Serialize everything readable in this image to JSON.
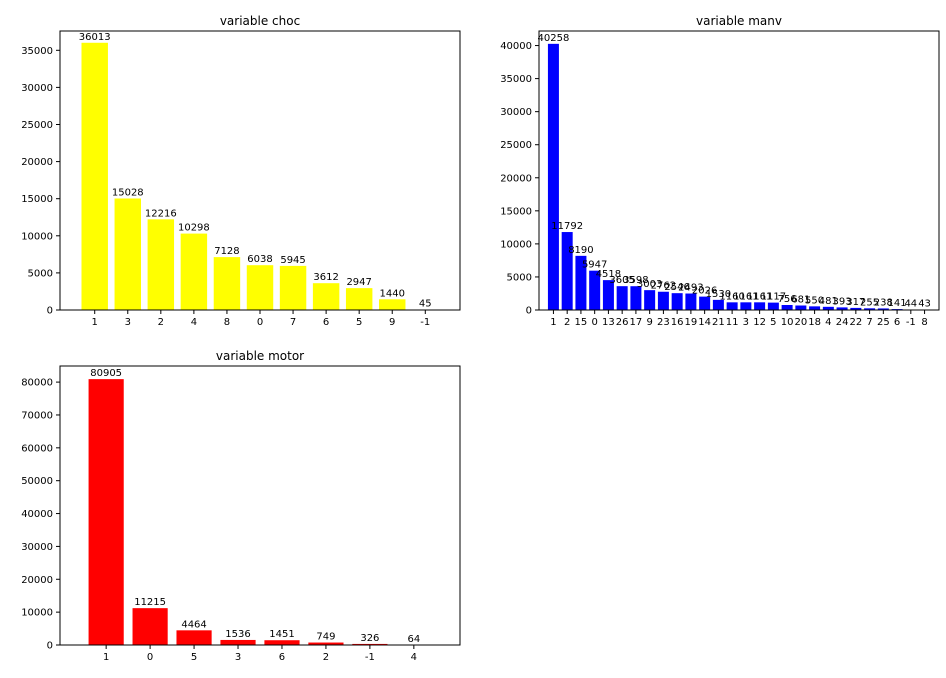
{
  "chart_data": [
    {
      "type": "bar",
      "title": "variable choc",
      "color": "#ffff00",
      "xlabel": "",
      "ylabel": "",
      "ylim": [
        0,
        37600
      ],
      "yticks": [
        0,
        5000,
        10000,
        15000,
        20000,
        25000,
        30000,
        35000
      ],
      "categories": [
        "1",
        "3",
        "2",
        "4",
        "8",
        "0",
        "7",
        "6",
        "5",
        "9",
        "-1"
      ],
      "values": [
        36013,
        15028,
        12216,
        10298,
        7128,
        6038,
        5945,
        3612,
        2947,
        1440,
        45
      ],
      "data_labels": [
        "36013",
        "15028",
        "12216",
        "10298",
        "7128",
        "6038",
        "5945",
        "3612",
        "2947",
        "1440",
        "45"
      ]
    },
    {
      "type": "bar",
      "title": "variable manv",
      "color": "#0000ff",
      "xlabel": "",
      "ylabel": "",
      "ylim": [
        0,
        42200
      ],
      "yticks": [
        0,
        5000,
        10000,
        15000,
        20000,
        25000,
        30000,
        35000,
        40000
      ],
      "categories": [
        "1",
        "2",
        "15",
        "0",
        "13",
        "26",
        "17",
        "9",
        "23",
        "16",
        "19",
        "14",
        "21",
        "11",
        "3",
        "12",
        "5",
        "10",
        "20",
        "18",
        "4",
        "24",
        "22",
        "7",
        "25",
        "6",
        "-1",
        "8"
      ],
      "values": [
        40258,
        11792,
        8190,
        5947,
        4518,
        3605,
        3598,
        3003,
        2762,
        2546,
        2493,
        2026,
        1530,
        1160,
        1161,
        1161,
        1117,
        756,
        681,
        550,
        481,
        393,
        317,
        255,
        238,
        141,
        44,
        43
      ],
      "data_labels": [
        "40258",
        "11792",
        "8190",
        "5947",
        "4518",
        "3605",
        "3598",
        "3003",
        "2762",
        "2546",
        "2493",
        "2026",
        "1530",
        "1160",
        "1161",
        "1161",
        "1117",
        "756",
        "681",
        "550",
        "481",
        "393",
        "317",
        "255",
        "238",
        "141",
        "44",
        "43"
      ]
    },
    {
      "type": "bar",
      "title": "variable motor",
      "color": "#ff0000",
      "xlabel": "",
      "ylabel": "",
      "ylim": [
        0,
        84900
      ],
      "yticks": [
        0,
        10000,
        20000,
        30000,
        40000,
        50000,
        60000,
        70000,
        80000
      ],
      "categories": [
        "1",
        "0",
        "5",
        "3",
        "6",
        "2",
        "-1",
        "4"
      ],
      "values": [
        80905,
        11215,
        4464,
        1536,
        1451,
        749,
        326,
        64
      ],
      "data_labels": [
        "80905",
        "11215",
        "4464",
        "1536",
        "1451",
        "749",
        "326",
        "64"
      ]
    }
  ]
}
